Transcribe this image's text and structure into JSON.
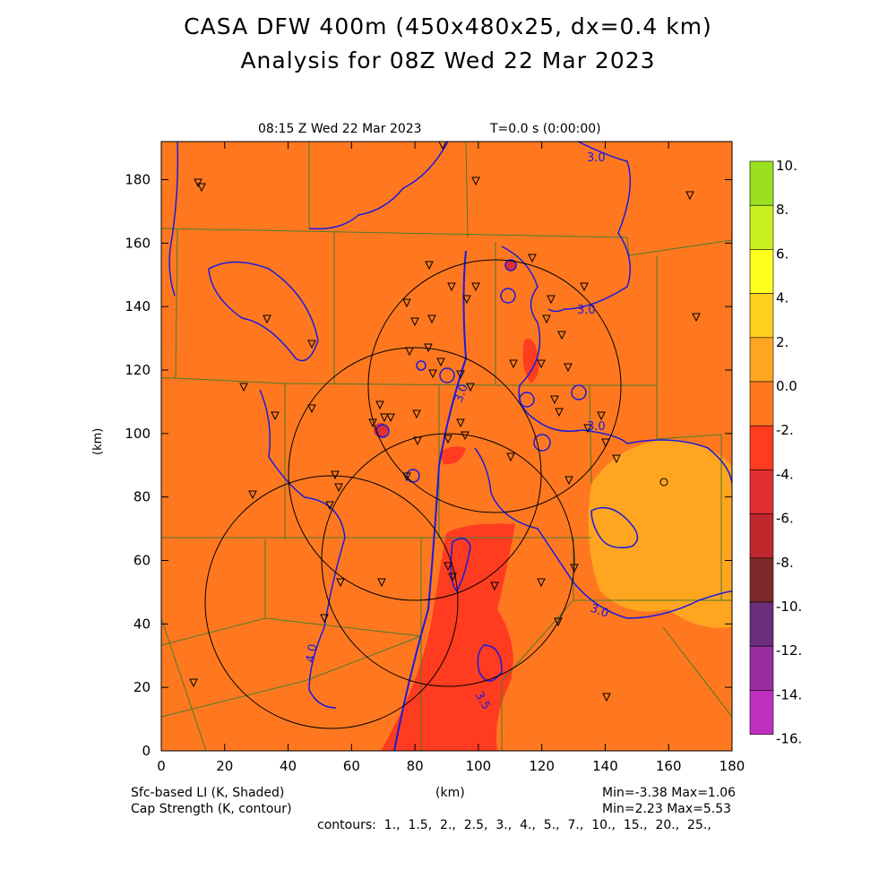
{
  "title_line1": "CASA DFW 400m (450x480x25, dx=0.4 km)",
  "title_line2": "Analysis for 08Z Wed 22 Mar 2023",
  "plot_time": "08:15 Z Wed 22 Mar 2023",
  "plot_t": "T=0.0 s (0:00:00)",
  "axis": {
    "x_label": "(km)",
    "y_label": "(km)",
    "x_ticks": [
      "0",
      "20",
      "40",
      "60",
      "80",
      "100",
      "120",
      "140",
      "160",
      "180"
    ],
    "y_ticks": [
      "0",
      "20",
      "40",
      "60",
      "80",
      "100",
      "120",
      "140",
      "160",
      "180"
    ],
    "x_range": [
      0,
      180
    ],
    "y_range": [
      0,
      192
    ]
  },
  "colorbar": {
    "labels": [
      "10.",
      "8.",
      "6.",
      "4.",
      "2.",
      "0.0",
      "-2.",
      "-4.",
      "-6.",
      "-8.",
      "-10.",
      "-12.",
      "-14.",
      "-16."
    ],
    "colors": [
      "#9be01f",
      "#c8f020",
      "#ffff20",
      "#ffd020",
      "#ffa520",
      "#ff7820",
      "#ff3c20",
      "#e02f33",
      "#c0282e",
      "#7d2a2a",
      "#6b2e7a",
      "#9a2ea0",
      "#c030c0",
      "#e040e0"
    ]
  },
  "contour_labels": [
    "3.0",
    "3.0",
    "3.0",
    "3.0",
    "3.0",
    "4.0",
    "3.5"
  ],
  "legend": {
    "shaded": "Sfc-based LI (K, Shaded)",
    "contour": "Cap Strength (K, contour)",
    "x_center": "(km)",
    "minmax1": "Min=-3.38 Max=1.06",
    "minmax2": "Min=2.23 Max=5.53",
    "contours": "contours:  1.,  1.5,  2.,  2.5,  3.,  4.,  5.,  7.,  10.,  15.,  20.,  25.,"
  },
  "colors": {
    "background_field": "#ff7820",
    "positive_field": "#ffa520",
    "negative_field": "#ff3c20",
    "contour": "#1a1ae0",
    "county_lines": "#4a7a2a"
  }
}
